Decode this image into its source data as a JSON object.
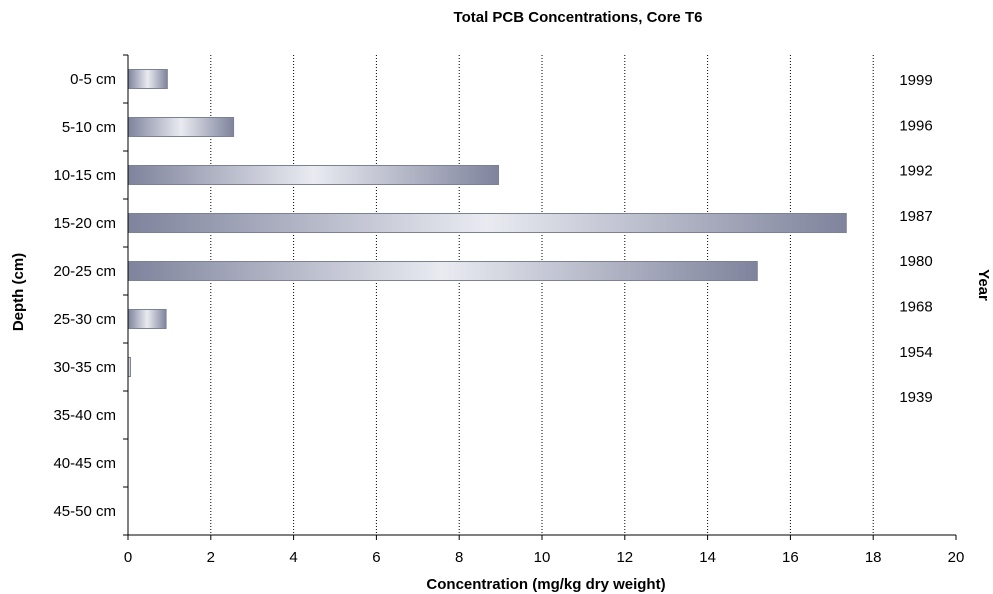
{
  "chart_data": {
    "type": "bar",
    "orientation": "horizontal",
    "title": "Total PCB Concentrations, Core T6",
    "xlabel": "Concentration (mg/kg dry weight)",
    "ylabel": "Depth (cm)",
    "secondary_ylabel": "Year",
    "xlim": [
      0,
      20
    ],
    "xticks": [
      0,
      2,
      4,
      6,
      8,
      10,
      12,
      14,
      16,
      18,
      20
    ],
    "grid": "vertical dotted",
    "categories": [
      "0-5 cm",
      "5-10 cm",
      "10-15 cm",
      "15-20 cm",
      "20-25 cm",
      "25-30 cm",
      "30-35 cm",
      "35-40 cm",
      "40-45 cm",
      "45-50 cm"
    ],
    "values": [
      0.95,
      2.55,
      8.95,
      17.35,
      15.2,
      0.92,
      0.06,
      0,
      0,
      0
    ],
    "years": [
      "1999",
      "1996",
      "1992",
      "1987",
      "1980",
      "1968",
      "1954",
      "1939"
    ],
    "colors": {
      "bar_edge": "#7d8196",
      "bar_light": "#e9ebf1",
      "bar_dark": "#7f839c",
      "grid": "#000000",
      "axis": "#000000"
    }
  }
}
